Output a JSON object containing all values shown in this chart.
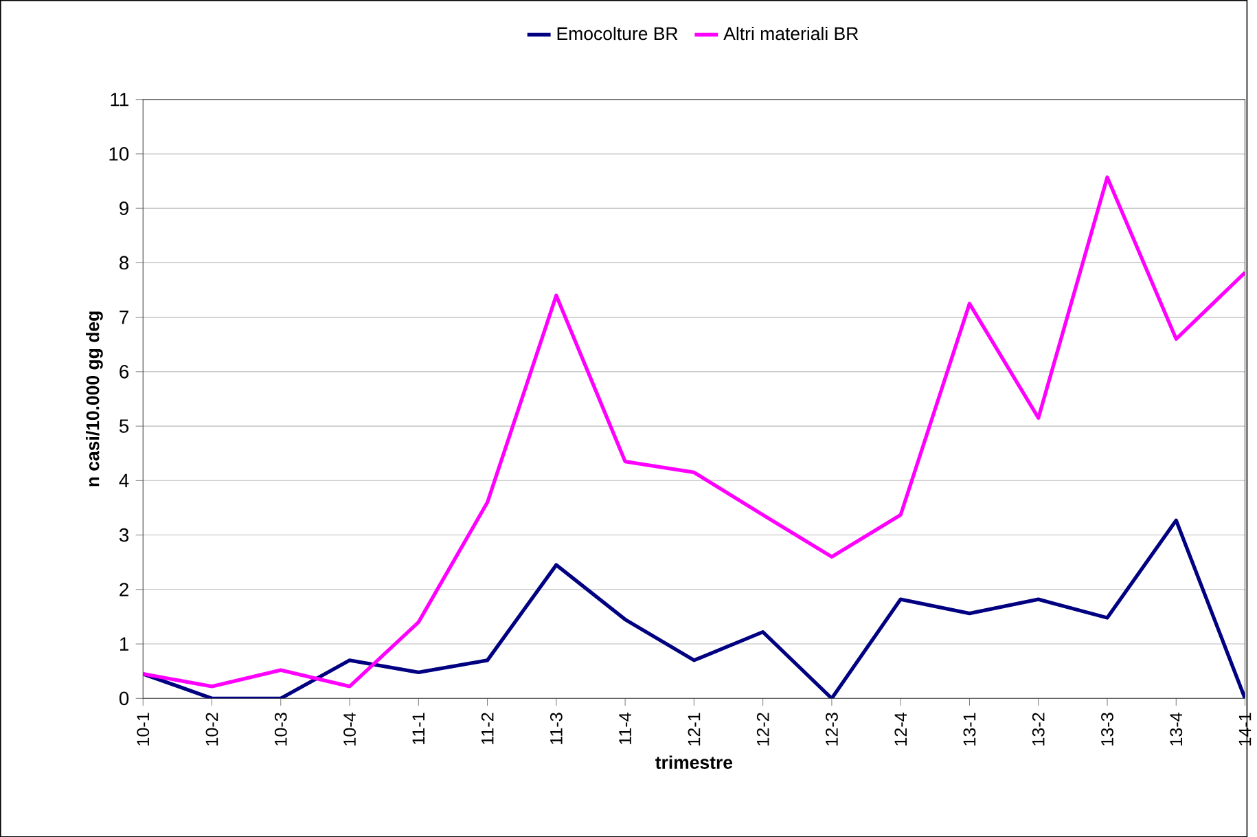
{
  "chart_data": {
    "type": "line",
    "xlabel": "trimestre",
    "ylabel": "n casi/10.000 gg deg",
    "categories": [
      "10-1",
      "10-2",
      "10-3",
      "10-4",
      "11-1",
      "11-2",
      "11-3",
      "11-4",
      "12-1",
      "12-2",
      "12-3",
      "12-4",
      "13-1",
      "13-2",
      "13-3",
      "13-4",
      "14-1"
    ],
    "series": [
      {
        "name": "Emocolture BR",
        "color": "#000080",
        "values": [
          0.45,
          0,
          0,
          0.7,
          0.48,
          0.7,
          2.45,
          1.45,
          0.7,
          1.22,
          0,
          1.82,
          1.56,
          1.82,
          1.48,
          3.27,
          0
        ]
      },
      {
        "name": "Altri materiali BR",
        "color": "#ff00ff",
        "values": [
          0.45,
          0.22,
          0.52,
          0.22,
          1.4,
          3.6,
          7.4,
          4.35,
          4.15,
          3.37,
          2.6,
          3.37,
          7.25,
          5.15,
          9.57,
          6.6,
          7.82
        ]
      }
    ],
    "ylim": [
      0,
      11
    ],
    "yticks": [
      0,
      1,
      2,
      3,
      4,
      5,
      6,
      7,
      8,
      9,
      10,
      11
    ],
    "grid": "y",
    "legend": "top",
    "marker": "none",
    "line_style": "solid"
  }
}
